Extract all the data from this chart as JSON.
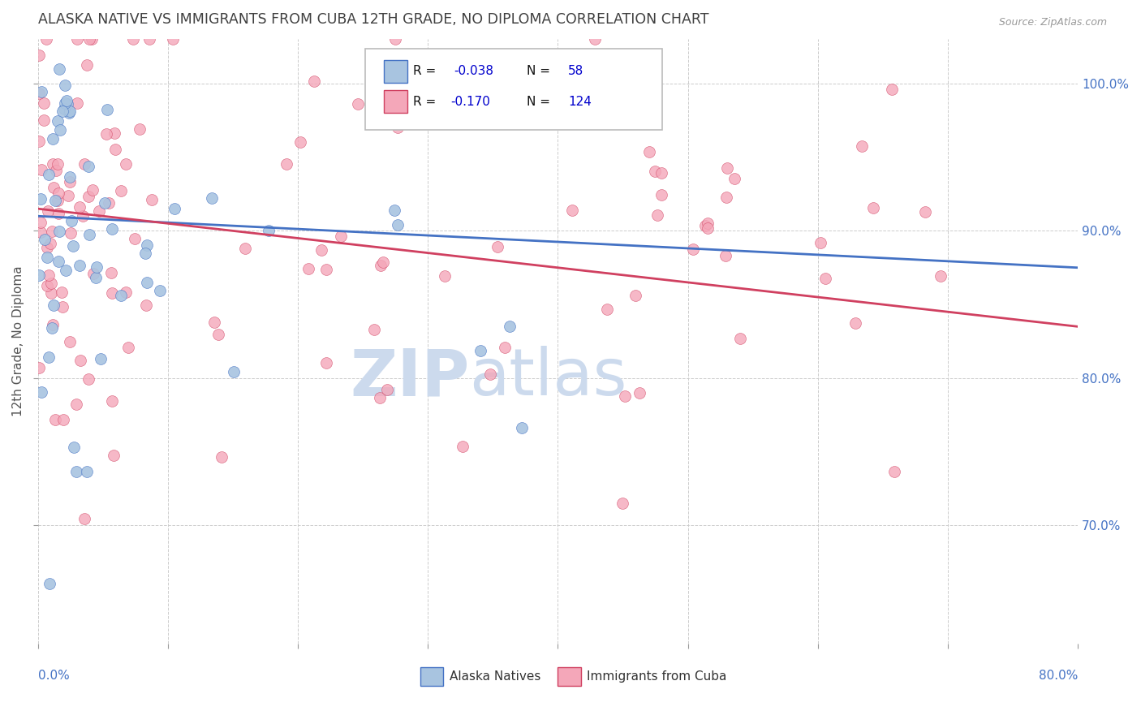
{
  "title": "ALASKA NATIVE VS IMMIGRANTS FROM CUBA 12TH GRADE, NO DIPLOMA CORRELATION CHART",
  "source_text": "Source: ZipAtlas.com",
  "ylabel": "12th Grade, No Diploma",
  "xmin": 0.0,
  "xmax": 80.0,
  "ymin": 62.0,
  "ymax": 103.0,
  "yticks": [
    70.0,
    80.0,
    90.0,
    100.0
  ],
  "r_blue": -0.038,
  "n_blue": 58,
  "r_pink": -0.17,
  "n_pink": 124,
  "legend_label_blue": "Alaska Natives",
  "legend_label_pink": "Immigrants from Cuba",
  "color_blue": "#a8c4e0",
  "color_pink": "#f4a7b9",
  "line_color_blue": "#4472c4",
  "line_color_pink": "#d04060",
  "bg_color": "#ffffff",
  "grid_color": "#cccccc",
  "title_color": "#404040",
  "source_color": "#999999",
  "tick_color": "#4472c4",
  "watermark_zip": "ZIP",
  "watermark_atlas": "atlas",
  "watermark_color": "#ccdaed",
  "blue_line_y0": 91.0,
  "blue_line_y1": 87.5,
  "pink_line_y0": 91.5,
  "pink_line_y1": 83.5
}
